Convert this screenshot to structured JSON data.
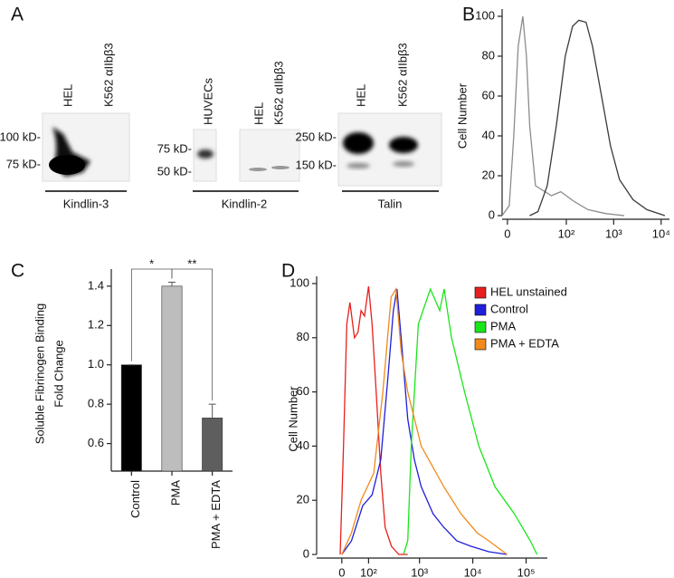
{
  "panel_a": {
    "label": "A",
    "blots": [
      {
        "lanes": [
          "HEL",
          "K562 αIIbβ3"
        ],
        "markers": [
          "100 kD-",
          "75 kD-"
        ],
        "protein": "Kindlin-3"
      },
      {
        "lanes": [
          "HUVECs",
          "HEL",
          "K562 αIIbβ3"
        ],
        "markers": [
          "75 kD-",
          "50 kD-"
        ],
        "protein": "Kindlin-2"
      },
      {
        "lanes": [
          "HEL",
          "K562 αIIbβ3"
        ],
        "markers": [
          "250 kD-",
          "150 kD-"
        ],
        "protein": "Talin"
      }
    ]
  },
  "chart_data": [
    {
      "type": "line",
      "panel": "B",
      "ylabel": [
        "Cell Number"
      ],
      "x_scale": "biexponential",
      "xlim": [
        -3,
        15000
      ],
      "xticks": [
        0,
        {
          "value": 100,
          "label": "10²"
        },
        {
          "value": 1000,
          "label": "10³"
        },
        {
          "value": 10000,
          "label": "10⁴"
        }
      ],
      "ylim": [
        0,
        100
      ],
      "yticks": [
        0,
        20,
        40,
        60,
        80,
        100
      ],
      "series": [
        {
          "color": "#8c8c8c",
          "x": [
            -3,
            1,
            3.6,
            6.3,
            9.4,
            12.2,
            15,
            21,
            48,
            76,
            148,
            287,
            690,
            1670
          ],
          "values": [
            0,
            5,
            40,
            85,
            100,
            80,
            45,
            15,
            10,
            12,
            7,
            3,
            1,
            0
          ]
        },
        {
          "color": "#3a3a3a",
          "x": [
            15,
            24,
            39,
            61,
            95,
            136,
            184,
            262,
            357,
            553,
            855,
            1330,
            2560,
            5000,
            12000
          ],
          "values": [
            0,
            2,
            15,
            45,
            80,
            95,
            98,
            97,
            85,
            60,
            35,
            18,
            8,
            3,
            0
          ]
        }
      ]
    },
    {
      "type": "bar",
      "panel": "C",
      "ylabel": [
        "Soluble Fibrinogen Binding",
        "Fold Change"
      ],
      "categories": [
        "Control",
        "PMA",
        "PMA + EDTA"
      ],
      "values": [
        1.0,
        1.4,
        0.73
      ],
      "errors": [
        0,
        0.02,
        0.07
      ],
      "colors": [
        "#000000",
        "#bdbdbd",
        "#5e5e5e"
      ],
      "annotations": [
        "*",
        "**"
      ],
      "ylim": [
        0.46,
        1.45
      ],
      "yticks": [
        0.6,
        0.8,
        {
          "value": 1,
          "label": "1.0"
        },
        1.2,
        1.4
      ]
    },
    {
      "type": "line",
      "panel": "D",
      "ylabel": [
        "Cell Number"
      ],
      "x_scale": "biexponential",
      "legend": "upper right",
      "xlim": [
        -92,
        250000
      ],
      "xticks": [
        0,
        {
          "value": 100,
          "label": "10²"
        },
        {
          "value": 1000,
          "label": "10³"
        },
        {
          "value": 10000,
          "label": "10⁴"
        },
        {
          "value": 100000,
          "label": "10⁵"
        }
      ],
      "ylim": [
        0,
        100
      ],
      "yticks": [
        0,
        20,
        40,
        60,
        80,
        100
      ],
      "series": [
        {
          "name": "HEL unstained",
          "color": "#e8201c",
          "x": [
            -5,
            5,
            15,
            25,
            40,
            53,
            65,
            80,
            100,
            120,
            146,
            182,
            222,
            294,
            407,
            600
          ],
          "values": [
            0,
            40,
            85,
            93,
            80,
            82,
            90,
            88,
            99,
            85,
            60,
            30,
            10,
            3,
            0,
            0
          ]
        },
        {
          "name": "Control",
          "color": "#1f1fdb",
          "x": [
            0,
            30,
            72,
            120,
            182,
            250,
            320,
            375,
            450,
            600,
            800,
            1080,
            1800,
            2870,
            5000,
            9300,
            20000,
            44000
          ],
          "values": [
            0,
            5,
            18,
            22,
            35,
            65,
            90,
            98,
            80,
            50,
            35,
            25,
            15,
            10,
            5,
            3,
            1,
            0
          ]
        },
        {
          "name": "PMA",
          "color": "#19e619",
          "x": [
            500,
            600,
            700,
            950,
            1600,
            2400,
            2900,
            4000,
            7000,
            13000,
            26000,
            60000,
            120000,
            160000
          ],
          "values": [
            0,
            5,
            40,
            85,
            98,
            90,
            98,
            80,
            60,
            40,
            25,
            15,
            5,
            0
          ]
        },
        {
          "name": "PMA + EDTA",
          "color": "#f08a1c",
          "x": [
            0,
            30,
            65,
            130,
            200,
            290,
            360,
            450,
            600,
            1080,
            2870,
            6000,
            12000,
            20000,
            44000
          ],
          "values": [
            0,
            8,
            20,
            30,
            60,
            95,
            98,
            75,
            60,
            40,
            25,
            15,
            8,
            5,
            0
          ]
        }
      ]
    }
  ]
}
